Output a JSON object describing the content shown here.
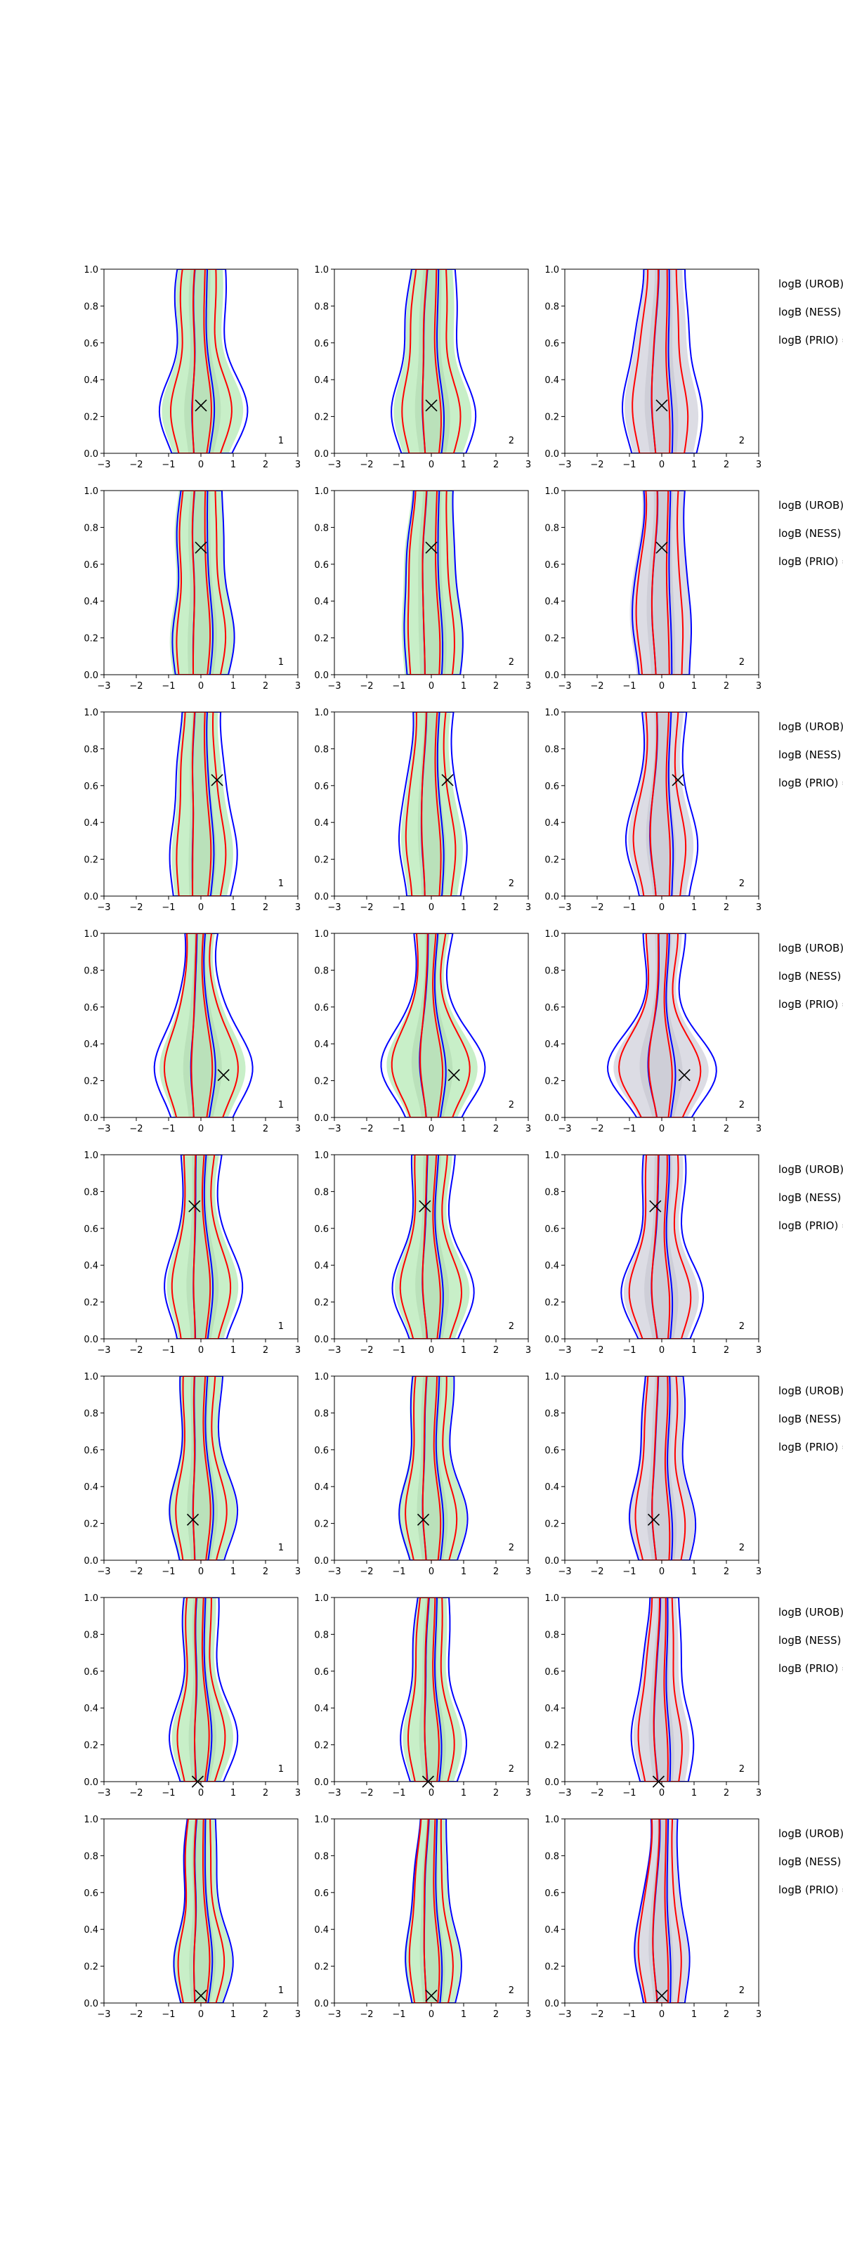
{
  "chart_data": {
    "type": "contour",
    "layout": {
      "rows": 8,
      "cols": 3
    },
    "xlim": [
      -3,
      3
    ],
    "ylim": [
      0,
      1
    ],
    "xticks": [
      -3,
      -2,
      -1,
      0,
      1,
      2,
      3
    ],
    "yticks": [
      0.0,
      0.2,
      0.4,
      0.6,
      0.8,
      1.0
    ],
    "xtick_labels": [
      "−3",
      "−2",
      "−1",
      "0",
      "1",
      "2",
      "3"
    ],
    "ytick_labels": [
      "0.0",
      "0.2",
      "0.4",
      "0.6",
      "0.8",
      "1.0"
    ],
    "column_tags": [
      "1",
      "2",
      "2"
    ],
    "fill_colors": [
      "#c8efc8",
      "#c8efc8",
      "#dcdce4"
    ],
    "contour_colors": {
      "blue": "#0000ff",
      "red": "#ff0000"
    },
    "side_labels": [
      "logB (UROB) =",
      "logB (NESS) =",
      "logB (PRIO) ="
    ],
    "markers": [
      {
        "x": 0.0,
        "y": 0.26
      },
      {
        "x": 0.0,
        "y": 0.69
      },
      {
        "x": 0.5,
        "y": 0.63
      },
      {
        "x": 0.7,
        "y": 0.23
      },
      {
        "x": -0.2,
        "y": 0.72
      },
      {
        "x": -0.25,
        "y": 0.22
      },
      {
        "x": -0.1,
        "y": 0.0
      },
      {
        "x": 0.0,
        "y": 0.04
      }
    ],
    "row_shapes": [
      {
        "outer": 1.3,
        "mid": 0.9,
        "inner": 0.33,
        "fill": 1.2,
        "neck": 0.55
      },
      {
        "outer": 0.95,
        "mid": 0.75,
        "inner": 0.3,
        "fill": 1.0,
        "neck": 0.7
      },
      {
        "outer": 1.1,
        "mid": 0.8,
        "inner": 0.35,
        "fill": 1.0,
        "neck": 0.6
      },
      {
        "outer": 1.6,
        "mid": 1.2,
        "inner": 0.4,
        "fill": 1.4,
        "neck": 0.35
      },
      {
        "outer": 1.2,
        "mid": 0.9,
        "inner": 0.3,
        "fill": 1.1,
        "neck": 0.5
      },
      {
        "outer": 1.0,
        "mid": 0.75,
        "inner": 0.3,
        "fill": 1.0,
        "neck": 0.6
      },
      {
        "outer": 1.0,
        "mid": 0.7,
        "inner": 0.25,
        "fill": 0.9,
        "neck": 0.5
      },
      {
        "outer": 0.9,
        "mid": 0.7,
        "inner": 0.28,
        "fill": 0.9,
        "neck": 0.5
      }
    ]
  }
}
